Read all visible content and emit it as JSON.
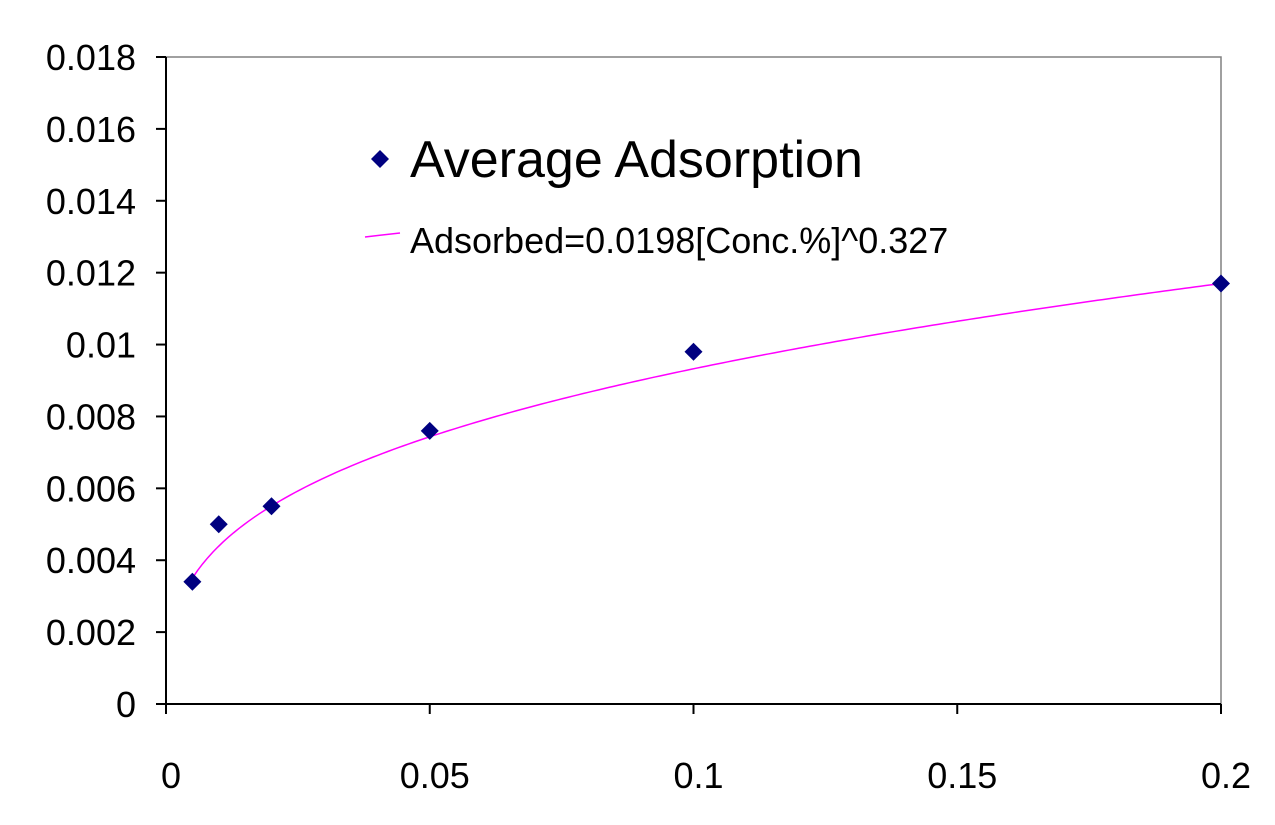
{
  "chart_data": {
    "type": "scatter",
    "title": "",
    "xlabel": "",
    "ylabel": "",
    "xlim": [
      0,
      0.2
    ],
    "ylim": [
      0,
      0.018
    ],
    "x_ticks": [
      "0",
      "0.05",
      "0.1",
      "0.15",
      "0.2"
    ],
    "x_tick_values": [
      0,
      0.05,
      0.1,
      0.15,
      0.2
    ],
    "y_ticks": [
      "0",
      "0.002",
      "0.004",
      "0.006",
      "0.008",
      "0.01",
      "0.012",
      "0.014",
      "0.016",
      "0.018"
    ],
    "y_tick_values": [
      0,
      0.002,
      0.004,
      0.006,
      0.008,
      0.01,
      0.012,
      0.014,
      0.016,
      0.018
    ],
    "grid": false,
    "legend_position": "top-center",
    "series": [
      {
        "name": "Average Adsorption",
        "marker": "diamond",
        "color": "#000080",
        "x": [
          0.005,
          0.01,
          0.02,
          0.05,
          0.1,
          0.2
        ],
        "y": [
          0.0034,
          0.005,
          0.0055,
          0.0076,
          0.0098,
          0.0117
        ]
      }
    ],
    "trendline": {
      "name": "Adsorbed=0.0198[Conc.%]^0.327",
      "type": "power",
      "coefficient": 0.0198,
      "exponent": 0.327,
      "x_range": [
        0.005,
        0.2
      ],
      "color": "#ff00ff"
    }
  }
}
